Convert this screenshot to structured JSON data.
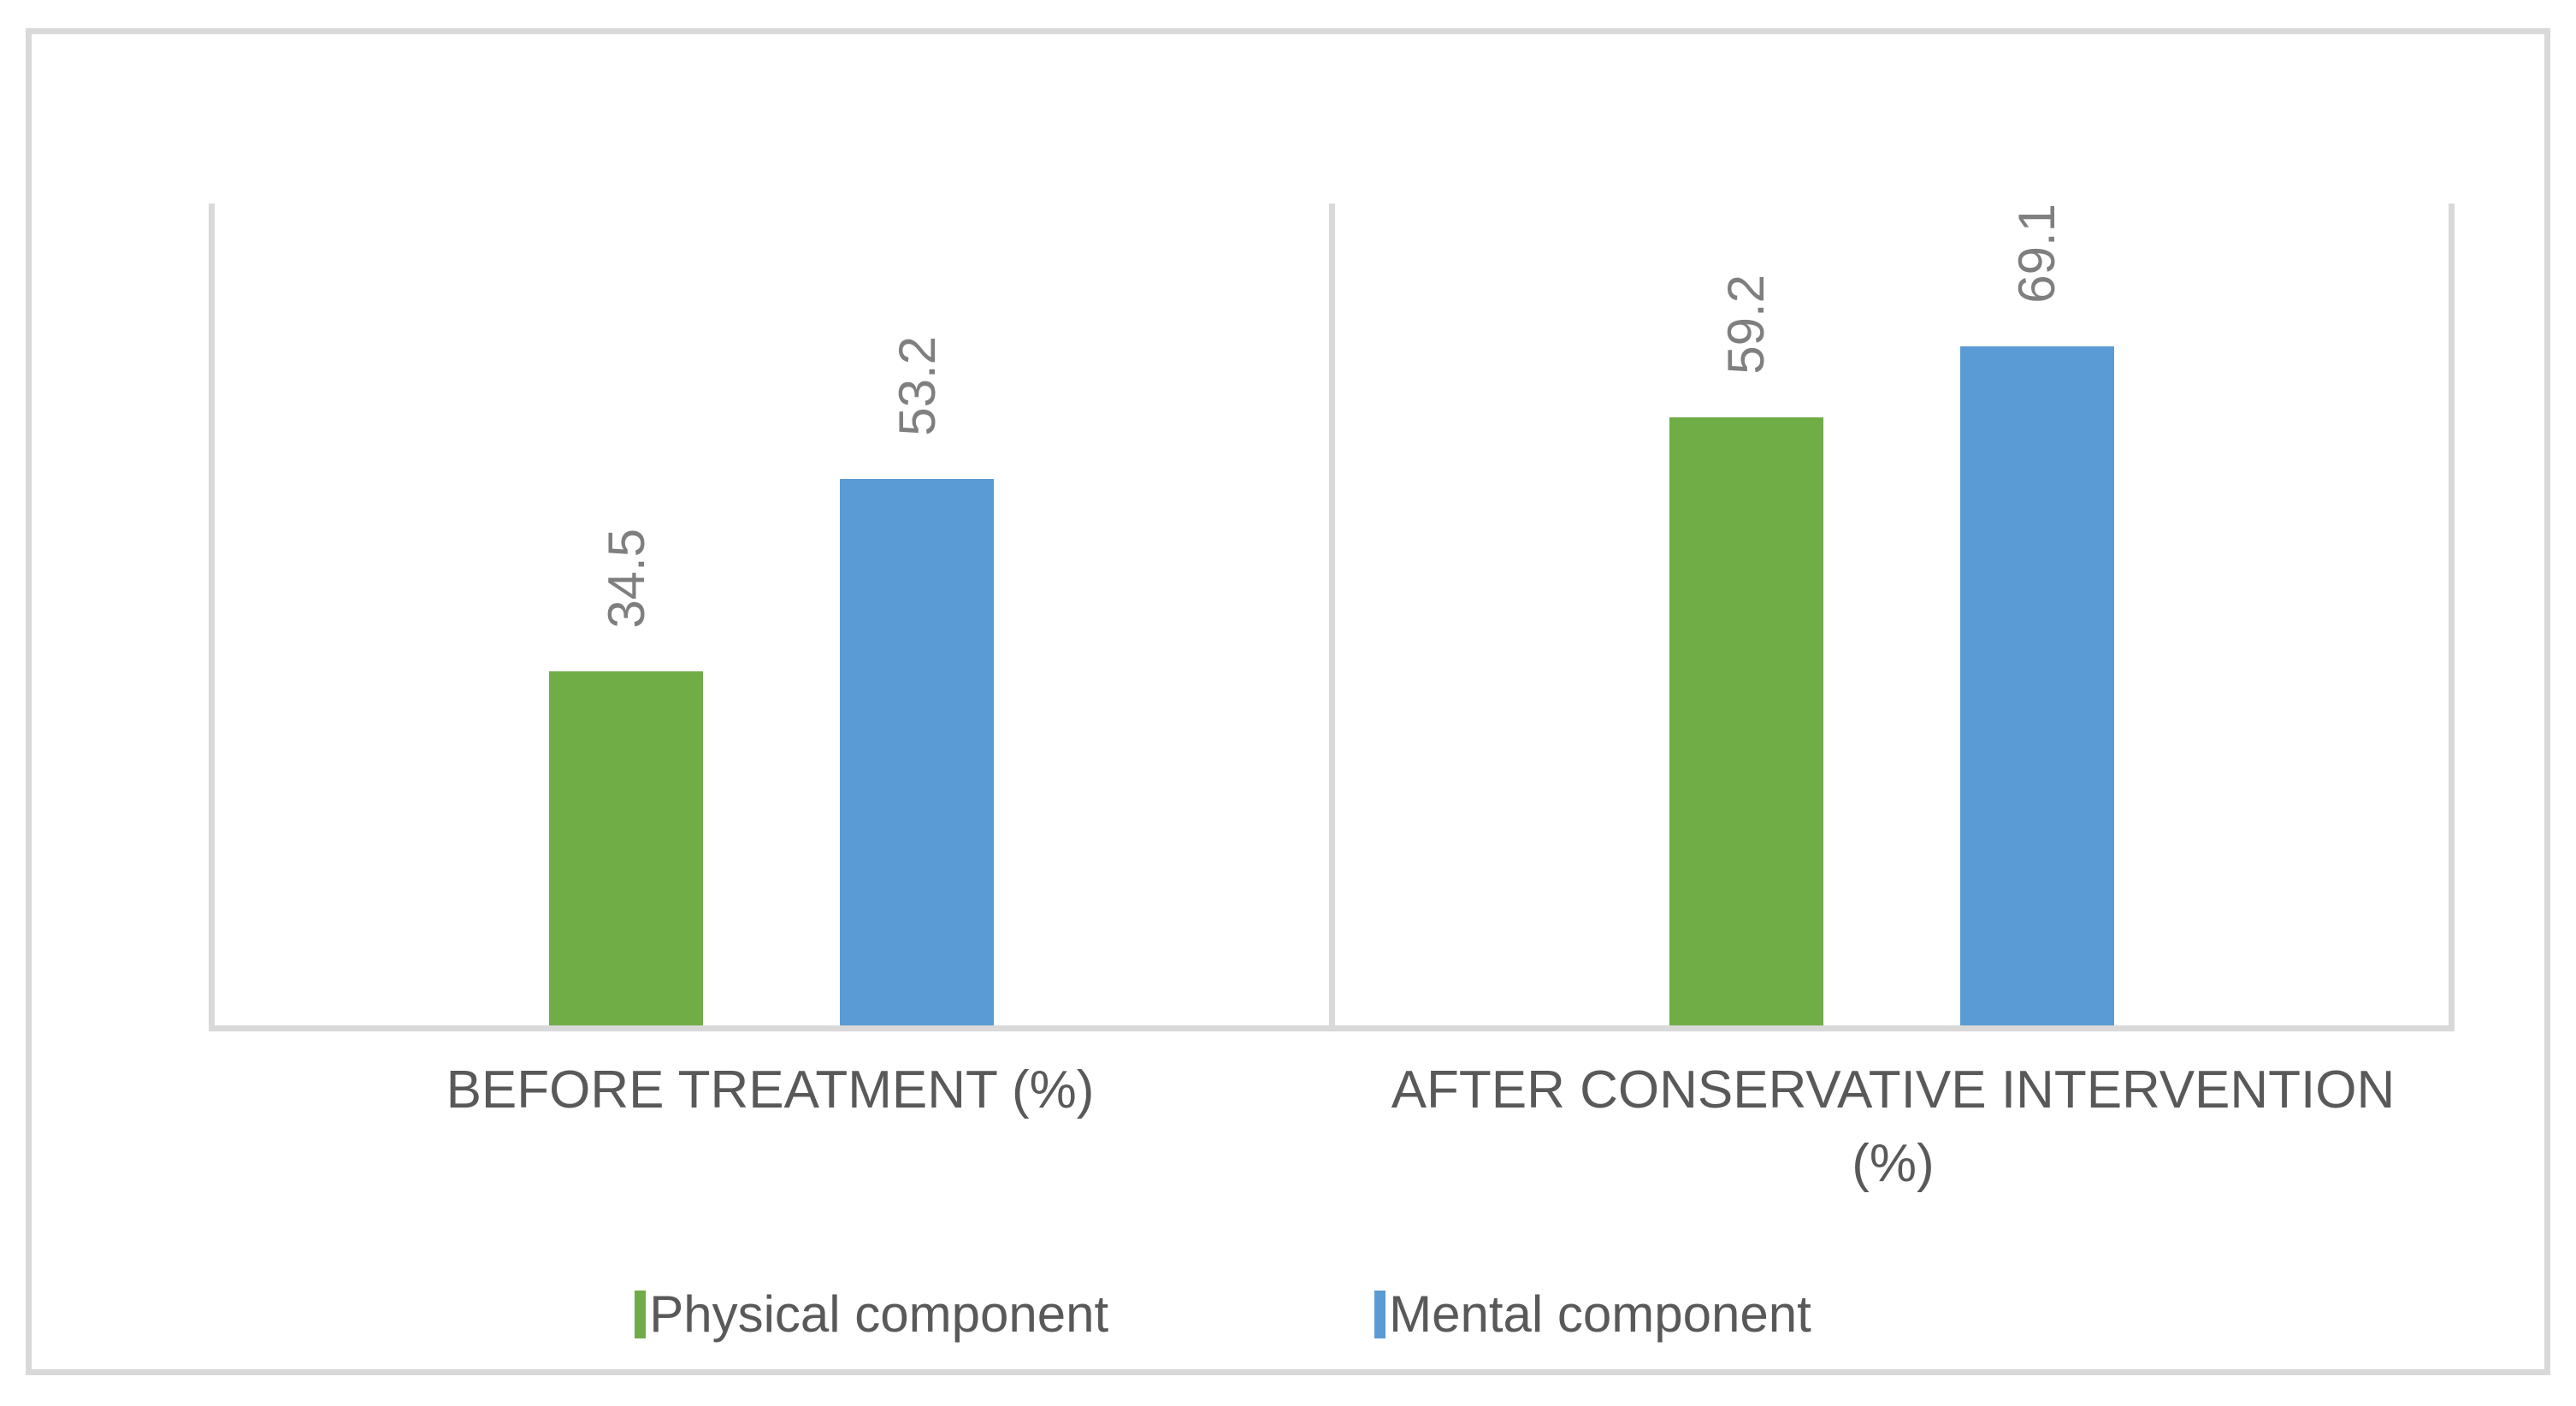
{
  "chart_data": {
    "type": "bar",
    "title": "",
    "xlabel": "",
    "ylabel": "",
    "categories": [
      "BEFORE TREATMENT (%)",
      "AFTER CONSERVATIVE INTERVENTION (%)"
    ],
    "category_label_lines": [
      [
        "BEFORE TREATMENT (%)"
      ],
      [
        "AFTER CONSERVATIVE INTERVENTION",
        "(%)"
      ]
    ],
    "series": [
      {
        "name": "Physical component",
        "color": "#70AD47",
        "values": [
          34.5,
          59.2
        ]
      },
      {
        "name": "Mental component",
        "color": "#5B9BD5",
        "values": [
          53.2,
          69.1
        ]
      }
    ],
    "value_labels": {
      "shown": true,
      "decimals": 1,
      "rotation_deg": -90,
      "color": "#7F7F7F"
    },
    "ylim": [
      0,
      80
    ],
    "y_axis_ticks_shown": false,
    "grid": false,
    "legend_position": "bottom",
    "styles": {
      "axis_line_color": "#D9D9D9",
      "frame_border_color": "#D9D9D9",
      "category_label_color": "#595959",
      "legend_label_color": "#595959",
      "background": "#FFFFFF"
    }
  }
}
